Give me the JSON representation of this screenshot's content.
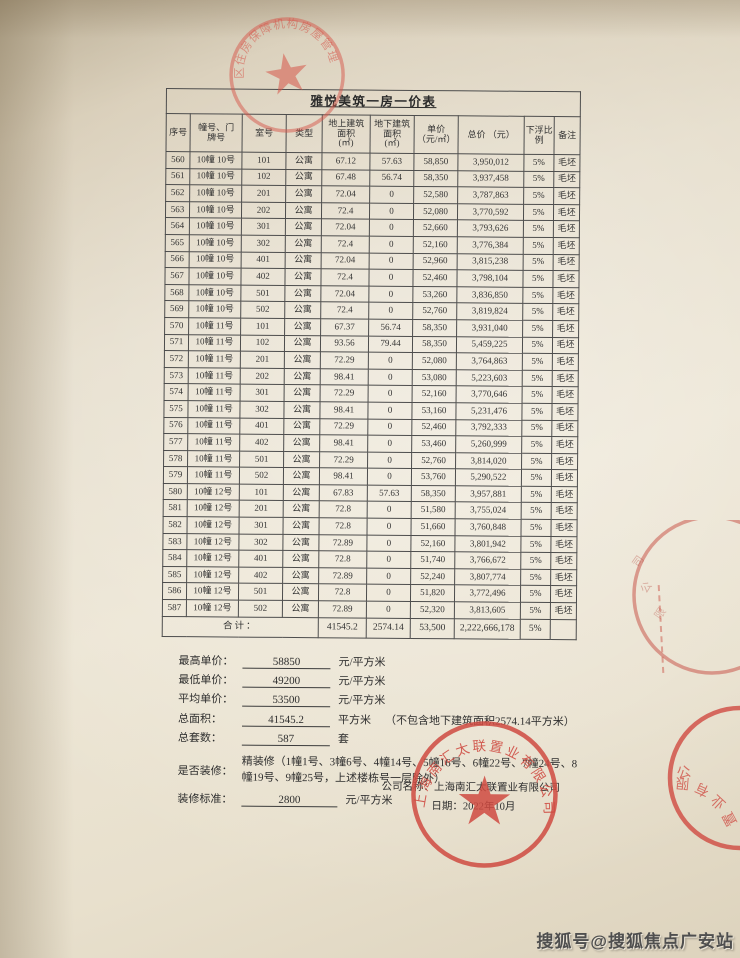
{
  "table": {
    "title": "雅悦美筑一房一价表",
    "headers": [
      "序号",
      "幢号、门\n牌号",
      "室号",
      "类型",
      "地上建筑\n面积\n(㎡)",
      "地下建筑\n面积\n(㎡)",
      "单价\n（元/㎡）",
      "总价 （元）",
      "下浮比\n例",
      "备注"
    ],
    "rows": [
      [
        "560",
        "10幢 10号",
        "101",
        "公寓",
        "67.12",
        "57.63",
        "58,850",
        "3,950,012",
        "5%",
        "毛坯"
      ],
      [
        "561",
        "10幢 10号",
        "102",
        "公寓",
        "67.48",
        "56.74",
        "58,350",
        "3,937,458",
        "5%",
        "毛坯"
      ],
      [
        "562",
        "10幢 10号",
        "201",
        "公寓",
        "72.04",
        "0",
        "52,580",
        "3,787,863",
        "5%",
        "毛坯"
      ],
      [
        "563",
        "10幢 10号",
        "202",
        "公寓",
        "72.4",
        "0",
        "52,080",
        "3,770,592",
        "5%",
        "毛坯"
      ],
      [
        "564",
        "10幢 10号",
        "301",
        "公寓",
        "72.04",
        "0",
        "52,660",
        "3,793,626",
        "5%",
        "毛坯"
      ],
      [
        "565",
        "10幢 10号",
        "302",
        "公寓",
        "72.4",
        "0",
        "52,160",
        "3,776,384",
        "5%",
        "毛坯"
      ],
      [
        "566",
        "10幢 10号",
        "401",
        "公寓",
        "72.04",
        "0",
        "52,960",
        "3,815,238",
        "5%",
        "毛坯"
      ],
      [
        "567",
        "10幢 10号",
        "402",
        "公寓",
        "72.4",
        "0",
        "52,460",
        "3,798,104",
        "5%",
        "毛坯"
      ],
      [
        "568",
        "10幢 10号",
        "501",
        "公寓",
        "72.04",
        "0",
        "53,260",
        "3,836,850",
        "5%",
        "毛坯"
      ],
      [
        "569",
        "10幢 10号",
        "502",
        "公寓",
        "72.4",
        "0",
        "52,760",
        "3,819,824",
        "5%",
        "毛坯"
      ],
      [
        "570",
        "10幢 11号",
        "101",
        "公寓",
        "67.37",
        "56.74",
        "58,350",
        "3,931,040",
        "5%",
        "毛坯"
      ],
      [
        "571",
        "10幢 11号",
        "102",
        "公寓",
        "93.56",
        "79.44",
        "58,350",
        "5,459,225",
        "5%",
        "毛坯"
      ],
      [
        "572",
        "10幢 11号",
        "201",
        "公寓",
        "72.29",
        "0",
        "52,080",
        "3,764,863",
        "5%",
        "毛坯"
      ],
      [
        "573",
        "10幢 11号",
        "202",
        "公寓",
        "98.41",
        "0",
        "53,080",
        "5,223,603",
        "5%",
        "毛坯"
      ],
      [
        "574",
        "10幢 11号",
        "301",
        "公寓",
        "72.29",
        "0",
        "52,160",
        "3,770,646",
        "5%",
        "毛坯"
      ],
      [
        "575",
        "10幢 11号",
        "302",
        "公寓",
        "98.41",
        "0",
        "53,160",
        "5,231,476",
        "5%",
        "毛坯"
      ],
      [
        "576",
        "10幢 11号",
        "401",
        "公寓",
        "72.29",
        "0",
        "52,460",
        "3,792,333",
        "5%",
        "毛坯"
      ],
      [
        "577",
        "10幢 11号",
        "402",
        "公寓",
        "98.41",
        "0",
        "53,460",
        "5,260,999",
        "5%",
        "毛坯"
      ],
      [
        "578",
        "10幢 11号",
        "501",
        "公寓",
        "72.29",
        "0",
        "52,760",
        "3,814,020",
        "5%",
        "毛坯"
      ],
      [
        "579",
        "10幢 11号",
        "502",
        "公寓",
        "98.41",
        "0",
        "53,760",
        "5,290,522",
        "5%",
        "毛坯"
      ],
      [
        "580",
        "10幢 12号",
        "101",
        "公寓",
        "67.83",
        "57.63",
        "58,350",
        "3,957,881",
        "5%",
        "毛坯"
      ],
      [
        "581",
        "10幢 12号",
        "201",
        "公寓",
        "72.8",
        "0",
        "51,580",
        "3,755,024",
        "5%",
        "毛坯"
      ],
      [
        "582",
        "10幢 12号",
        "301",
        "公寓",
        "72.8",
        "0",
        "51,660",
        "3,760,848",
        "5%",
        "毛坯"
      ],
      [
        "583",
        "10幢 12号",
        "302",
        "公寓",
        "72.89",
        "0",
        "52,160",
        "3,801,942",
        "5%",
        "毛坯"
      ],
      [
        "584",
        "10幢 12号",
        "401",
        "公寓",
        "72.8",
        "0",
        "51,740",
        "3,766,672",
        "5%",
        "毛坯"
      ],
      [
        "585",
        "10幢 12号",
        "402",
        "公寓",
        "72.89",
        "0",
        "52,240",
        "3,807,774",
        "5%",
        "毛坯"
      ],
      [
        "586",
        "10幢 12号",
        "501",
        "公寓",
        "72.8",
        "0",
        "51,820",
        "3,772,496",
        "5%",
        "毛坯"
      ],
      [
        "587",
        "10幢 12号",
        "502",
        "公寓",
        "72.89",
        "0",
        "52,320",
        "3,813,605",
        "5%",
        "毛坯"
      ]
    ],
    "total_row": {
      "label": "合计：",
      "cells": [
        "41545.2",
        "2574.14",
        "53,500",
        "2,222,666,178",
        "5%",
        ""
      ]
    }
  },
  "summary": {
    "items": [
      {
        "label": "最高单价：",
        "value": "58850",
        "unit": "元/平方米",
        "note": ""
      },
      {
        "label": "最低单价：",
        "value": "49200",
        "unit": "元/平方米",
        "note": ""
      },
      {
        "label": "平均单价：",
        "value": "53500",
        "unit": "元/平方米",
        "note": ""
      },
      {
        "label": "总面积：",
        "value": "41545.2",
        "unit": "平方米",
        "note": "（不包含地下建筑面积2574.14平方米）"
      },
      {
        "label": "总套数：",
        "value": "587",
        "unit": "套",
        "note": ""
      }
    ],
    "decoration_label": "是否装修：",
    "decoration_value": "精装修（1幢1号、3幢6号、4幢14号、5幢16号、6幢22号、7幢24号、8幢19号、9幢25号，上述楼栋号一层除外）",
    "standard_label": "装修标准：",
    "standard_value": "2800",
    "standard_unit": "元/平方米",
    "company_label": "公司名称：",
    "company_value": "上海南汇太联置业有限公司",
    "date_label": "日期：",
    "date_value": "2022年10月"
  },
  "seals": {
    "top_seal_text": "区住房保障机构房屋管理",
    "company_seal_text": "上海南汇太联置业有限公司",
    "right_seal_text": "置业有限公",
    "mid_arc_char_1": "司",
    "mid_arc_char_2": "公",
    "mid_arc_char_3": "限",
    "seal_color": "#cf4a41"
  },
  "watermark": {
    "text": "搜狐号@搜狐焦点广安站"
  }
}
